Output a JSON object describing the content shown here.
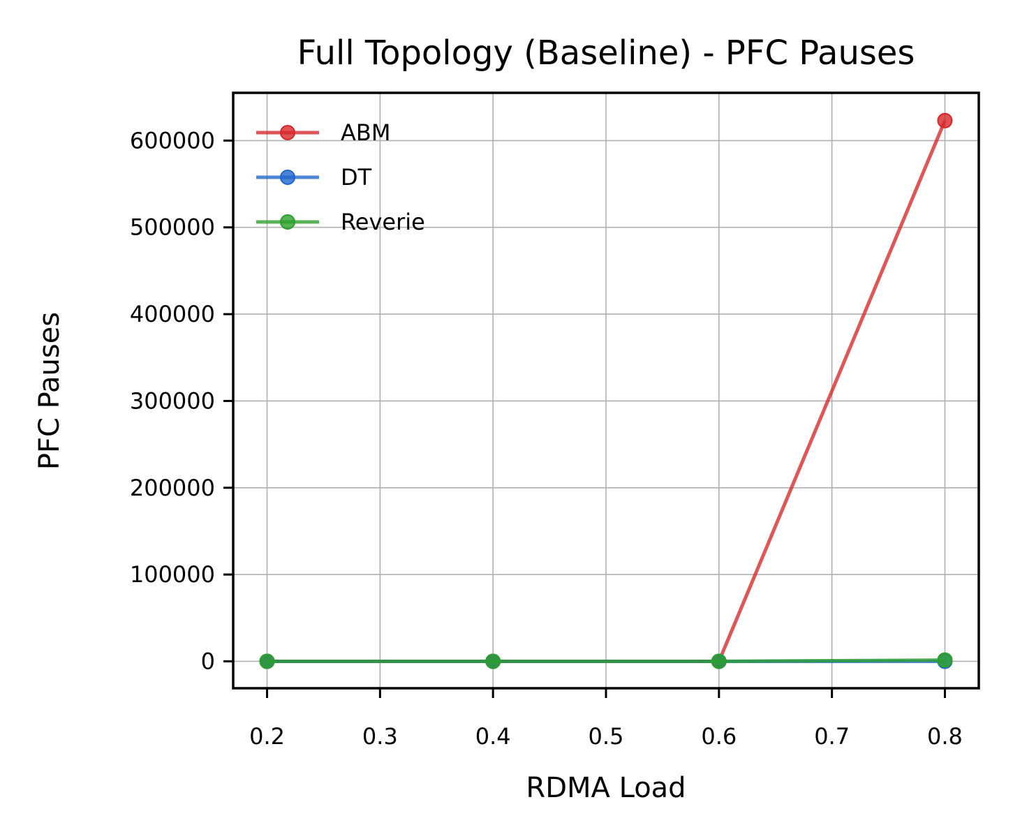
{
  "chart_data": {
    "type": "line",
    "title": "Full Topology (Baseline) - PFC Pauses",
    "xlabel": "RDMA Load",
    "ylabel": "PFC Pauses",
    "x": [
      0.2,
      0.4,
      0.6,
      0.8
    ],
    "xlim": [
      0.17,
      0.83
    ],
    "ylim": [
      -31000,
      655000
    ],
    "xticks": [
      0.2,
      0.3,
      0.4,
      0.5,
      0.6,
      0.7,
      0.8
    ],
    "xtick_labels": [
      "0.2",
      "0.3",
      "0.4",
      "0.5",
      "0.6",
      "0.7",
      "0.8"
    ],
    "yticks": [
      0,
      100000,
      200000,
      300000,
      400000,
      500000,
      600000
    ],
    "ytick_labels": [
      "0",
      "100000",
      "200000",
      "300000",
      "400000",
      "500000",
      "600000"
    ],
    "grid": true,
    "legend_position": "top-left",
    "series": [
      {
        "name": "ABM",
        "color": "#d62728",
        "values": [
          0,
          0,
          0,
          623000
        ]
      },
      {
        "name": "DT",
        "color": "#1f66cc",
        "values": [
          0,
          0,
          0,
          0
        ]
      },
      {
        "name": "Reverie",
        "color": "#2ca02c",
        "values": [
          0,
          0,
          0,
          1500
        ]
      }
    ]
  }
}
